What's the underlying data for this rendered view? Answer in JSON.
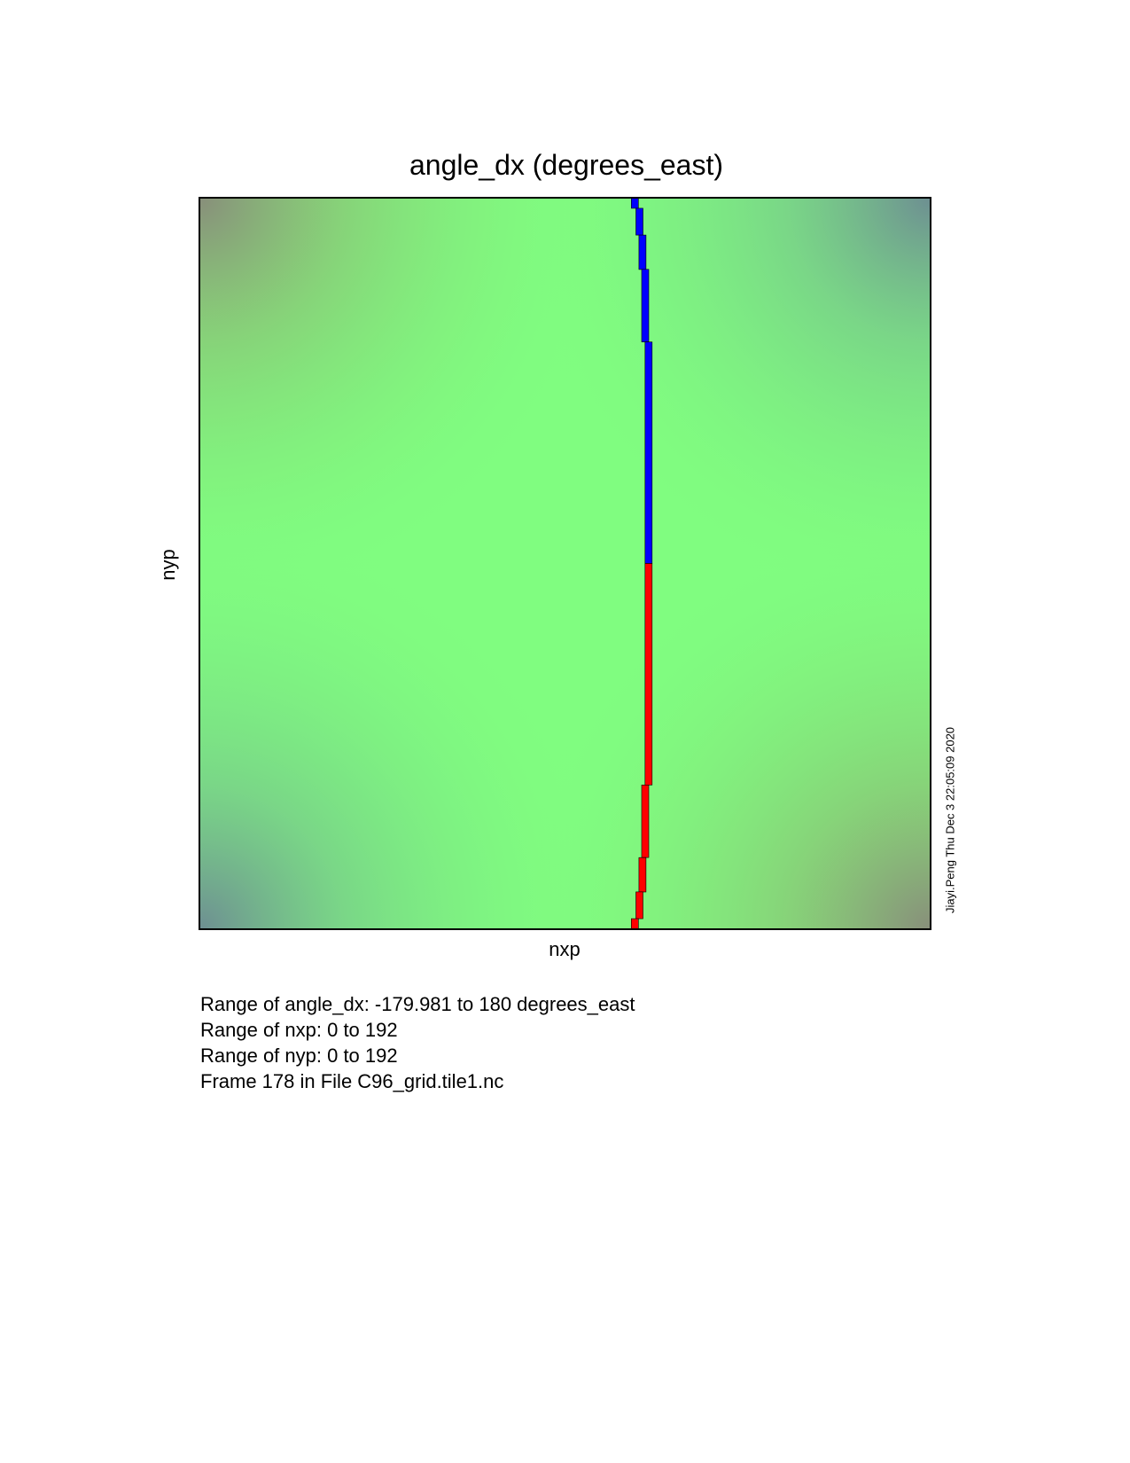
{
  "chart_data": {
    "type": "heatmap",
    "title": "angle_dx (degrees_east)",
    "xlabel": "nxp",
    "ylabel": "nyp",
    "xlim": [
      0,
      192
    ],
    "ylim": [
      0,
      192
    ],
    "value_range": [
      -179.981,
      180
    ],
    "units": "degrees_east",
    "field_description": "angle_dx is near 0 over most of the tile (green), with darker muted tones toward the four corners; a discontinuity line near nxp 115–119 has values near +180 (blue, upper half) and near -180 (red, lower half).",
    "colors": {
      "background_field": "#80fd80",
      "corner_tint": "#8a7a7a",
      "positive_extreme": "#0000ff",
      "negative_extreme": "#ff0000"
    },
    "discontinuity_steps": [
      {
        "nyp_from": 189,
        "nyp_to": 192,
        "nxp": 114.3,
        "value": 180
      },
      {
        "nyp_from": 182,
        "nyp_to": 189,
        "nxp": 115.5,
        "value": 180
      },
      {
        "nyp_from": 173,
        "nyp_to": 182,
        "nxp": 116.3,
        "value": 180
      },
      {
        "nyp_from": 154,
        "nyp_to": 173,
        "nxp": 117.0,
        "value": 180
      },
      {
        "nyp_from": 96,
        "nyp_to": 154,
        "nxp": 117.9,
        "value": 180
      },
      {
        "nyp_from": 38,
        "nyp_to": 96,
        "nxp": 117.9,
        "value": -179.981
      },
      {
        "nyp_from": 19,
        "nyp_to": 38,
        "nxp": 117.0,
        "value": -179.981
      },
      {
        "nyp_from": 10,
        "nyp_to": 19,
        "nxp": 116.3,
        "value": -179.981
      },
      {
        "nyp_from": 3,
        "nyp_to": 10,
        "nxp": 115.5,
        "value": -179.981
      },
      {
        "nyp_from": 0,
        "nyp_to": 3,
        "nxp": 114.3,
        "value": -179.981
      }
    ]
  },
  "credit": "Jiayi.Peng Thu Dec  3 22:05:09 2020",
  "info_lines": [
    "Range of angle_dx: -179.981 to 180 degrees_east",
    "Range of nxp: 0 to 192",
    "Range of nyp: 0 to 192",
    "Frame 178 in File C96_grid.tile1.nc"
  ]
}
